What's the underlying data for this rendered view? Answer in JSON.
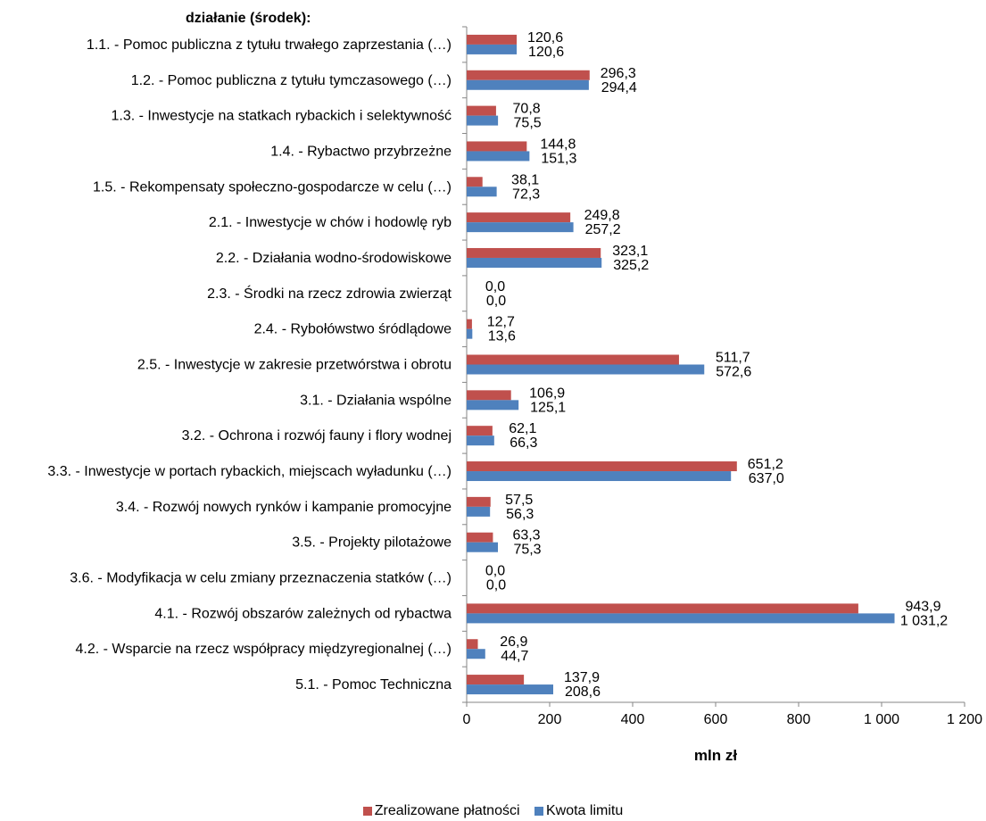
{
  "chart_data": {
    "type": "bar",
    "orientation": "horizontal",
    "category_header": "działanie (środek):",
    "xlabel": "mln zł",
    "xlim": [
      0,
      1200
    ],
    "xticks": [
      0,
      200,
      400,
      600,
      800,
      1000,
      1200
    ],
    "xtick_labels": [
      "0",
      "200",
      "400",
      "600",
      "800",
      "1 000",
      "1 200"
    ],
    "legend_position": "bottom",
    "categories": [
      "1.1. - Pomoc publiczna z tytułu trwałego zaprzestania (…)",
      "1.2. - Pomoc publiczna z tytułu tymczasowego (…)",
      "1.3. - Inwestycje na statkach rybackich i selektywność",
      "1.4. - Rybactwo przybrzeżne",
      "1.5. - Rekompensaty społeczno-gospodarcze w celu (…)",
      "2.1. - Inwestycje w chów i hodowlę ryb",
      "2.2. - Działania wodno-środowiskowe",
      "2.3. - Środki na rzecz zdrowia zwierząt",
      "2.4. - Rybołówstwo śródlądowe",
      "2.5. - Inwestycje w zakresie przetwórstwa i obrotu",
      "3.1. - Działania wspólne",
      "3.2. - Ochrona i rozwój fauny i flory wodnej",
      "3.3. - Inwestycje w portach rybackich, miejscach wyładunku (…)",
      "3.4. - Rozwój nowych rynków i kampanie promocyjne",
      "3.5. - Projekty pilotażowe",
      "3.6. - Modyfikacja w celu zmiany przeznaczenia statków (…)",
      "4.1. - Rozwój obszarów zależnych od rybactwa",
      "4.2. - Wsparcie na rzecz współpracy międzyregionalnej (…)",
      "5.1. - Pomoc Techniczna"
    ],
    "series": [
      {
        "name": "Zrealizowane płatności",
        "color": "#c0504d",
        "values": [
          120.6,
          296.3,
          70.8,
          144.8,
          38.1,
          249.8,
          323.1,
          0.0,
          12.7,
          511.7,
          106.9,
          62.1,
          651.2,
          57.5,
          63.3,
          0.0,
          943.9,
          26.9,
          137.9
        ],
        "labels": [
          "120,6",
          "296,3",
          "70,8",
          "144,8",
          "38,1",
          "249,8",
          "323,1",
          "0,0",
          "12,7",
          "511,7",
          "106,9",
          "62,1",
          "651,2",
          "57,5",
          "63,3",
          "0,0",
          "943,9",
          "26,9",
          "137,9"
        ]
      },
      {
        "name": "Kwota limitu",
        "color": "#4f81bd",
        "values": [
          120.6,
          294.4,
          75.5,
          151.3,
          72.3,
          257.2,
          325.2,
          0.0,
          13.6,
          572.6,
          125.1,
          66.3,
          637.0,
          56.3,
          75.3,
          0.0,
          1031.2,
          44.7,
          208.6
        ],
        "labels": [
          "120,6",
          "294,4",
          "75,5",
          "151,3",
          "72,3",
          "257,2",
          "325,2",
          "0,0",
          "13,6",
          "572,6",
          "125,1",
          "66,3",
          "637,0",
          "56,3",
          "75,3",
          "0,0",
          "1 031,2",
          "44,7",
          "208,6"
        ]
      }
    ]
  }
}
